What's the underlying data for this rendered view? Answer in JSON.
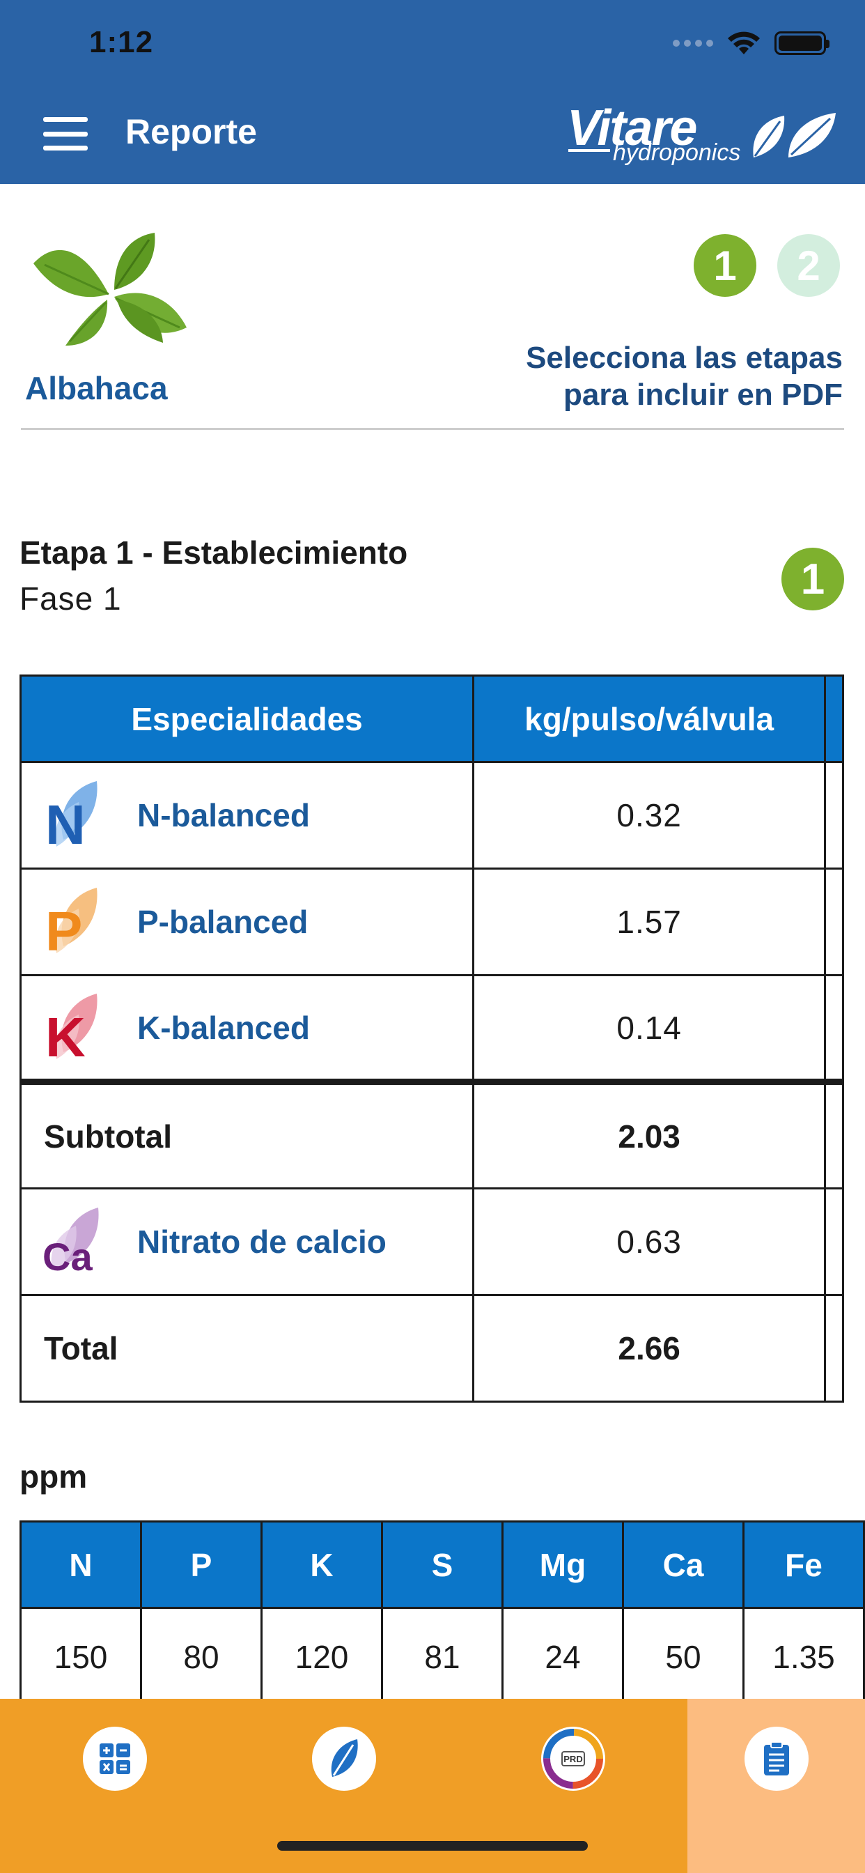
{
  "status_bar": {
    "time": "1:12"
  },
  "header": {
    "title": "Reporte",
    "brand": {
      "name": "Vitare",
      "sub": "hydroponics"
    }
  },
  "plant": {
    "name": "Albahaca",
    "step_labels": [
      "1",
      "2"
    ],
    "select_text_line1": "Selecciona las etapas",
    "select_text_line2": "para incluir en PDF"
  },
  "stage": {
    "title": "Etapa 1 - Establecimiento",
    "subtitle": "Fase 1",
    "badge": "1"
  },
  "main_table": {
    "headers": [
      "Especialidades",
      "kg/pulso/válvula"
    ],
    "rows": [
      {
        "icon_letter": "N",
        "name": "N-balanced",
        "value": "0.32",
        "color": "#1f5fb3",
        "leaf_color": "#7fb2e8"
      },
      {
        "icon_letter": "P",
        "name": "P-balanced",
        "value": "1.57",
        "color": "#f08a1c",
        "leaf_color": "#f6bf80"
      },
      {
        "icon_letter": "K",
        "name": "K-balanced",
        "value": "0.14",
        "color": "#c8102e",
        "leaf_color": "#ee9aa6"
      }
    ],
    "subtotal": {
      "label": "Subtotal",
      "value": "2.03"
    },
    "calcium": {
      "icon_letter": "Ca",
      "name": "Nitrato de calcio",
      "value": "0.63",
      "color": "#6a1f7a",
      "leaf_color": "#c9a6d6"
    },
    "total": {
      "label": "Total",
      "value": "2.66"
    }
  },
  "ppm": {
    "label": "ppm",
    "headers": [
      "N",
      "P",
      "K",
      "S",
      "Mg",
      "Ca",
      "Fe"
    ],
    "values": [
      "150",
      "80",
      "120",
      "81",
      "24",
      "50",
      "1.35"
    ]
  },
  "tabbar": {
    "tabs": [
      {
        "icon": "calculator-icon",
        "active": false
      },
      {
        "icon": "leaf-icon",
        "active": false
      },
      {
        "icon": "prd-logo-icon",
        "badge": "PRD",
        "active": false
      },
      {
        "icon": "report-icon",
        "active": true
      }
    ]
  },
  "colors": {
    "header_bg": "#2a63a6",
    "table_header_bg": "#0b76c9",
    "step_active": "#7eb12e",
    "tabbar_bg": "#f09e26",
    "tab_active_bg": "#fcbc80"
  }
}
